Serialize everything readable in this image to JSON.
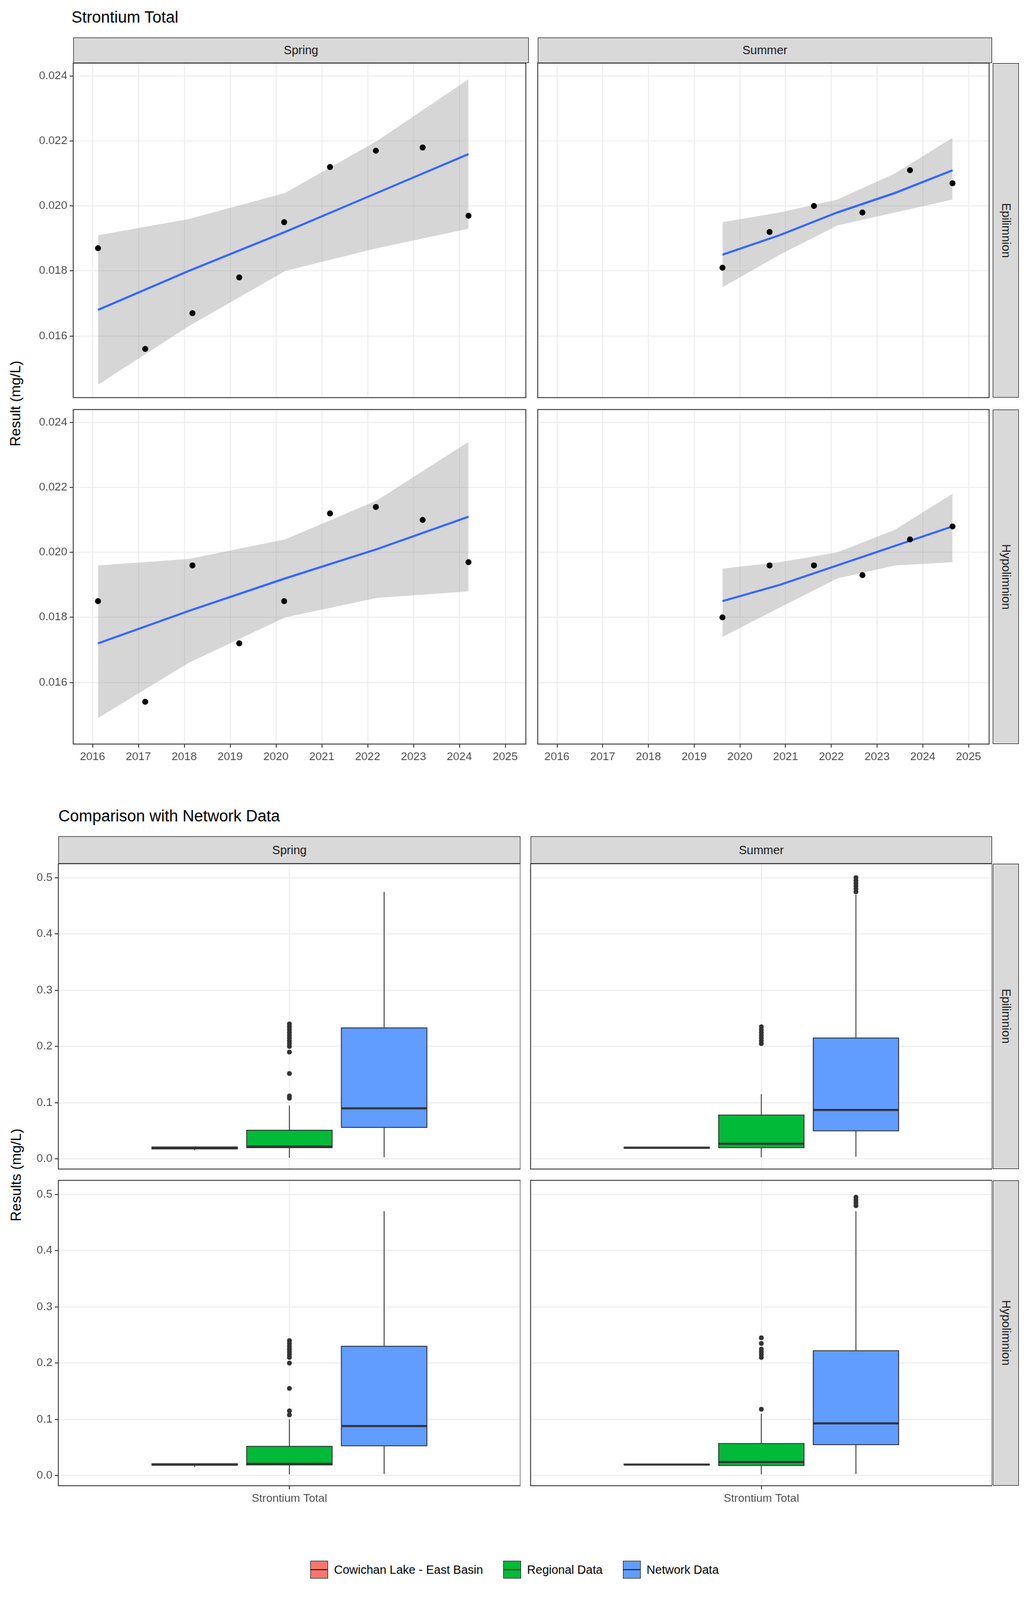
{
  "chart_data": [
    {
      "type": "scatter",
      "title": "Strontium Total",
      "y_label": "Result (mg/L)",
      "columns": [
        "Spring",
        "Summer"
      ],
      "rows": [
        "Epilimnion",
        "Hypolimnion"
      ],
      "xlim": [
        2015.58,
        2025.45
      ],
      "xticks": [
        2016,
        2017,
        2018,
        2019,
        2020,
        2021,
        2022,
        2023,
        2024,
        2025
      ],
      "ylim": [
        0.0141,
        0.0244
      ],
      "yticks": [
        0.016,
        0.018,
        {
          "value": 0.02,
          "label": "0.020"
        },
        0.022,
        0.024
      ],
      "grid": true,
      "color": "#000000",
      "panels": [
        {
          "column": "Spring",
          "row": "Epilimnion",
          "x": [
            2016.12,
            2017.15,
            2018.18,
            2019.2,
            2020.18,
            2021.18,
            2022.18,
            2023.2,
            2024.2
          ],
          "values": [
            0.0187,
            0.0156,
            0.0167,
            0.0178,
            0.0195,
            0.0212,
            0.0217,
            0.0218,
            0.0197
          ],
          "fit": {
            "color": "#3366FF",
            "x": [
              2016.12,
              2018.1,
              2020.2,
              2022.2,
              2024.2
            ],
            "values": [
              0.0168,
              0.018,
              0.0192,
              0.0204,
              0.0216
            ]
          },
          "band": {
            "color": "#999999",
            "x": [
              2016.12,
              2018.1,
              2020.2,
              2022.2,
              2024.2
            ],
            "lower": [
              0.0145,
              0.0163,
              0.018,
              0.0187,
              0.0193
            ],
            "upper": [
              0.0191,
              0.0196,
              0.0204,
              0.022,
              0.0239
            ]
          }
        },
        {
          "column": "Summer",
          "row": "Epilimnion",
          "x": [
            2019.62,
            2020.65,
            2021.62,
            2022.68,
            2023.72,
            2024.65
          ],
          "values": [
            0.0181,
            0.0192,
            0.02,
            0.0198,
            0.0211,
            0.0207
          ],
          "fit": {
            "color": "#3366FF",
            "x": [
              2019.62,
              2020.87,
              2022.13,
              2023.39,
              2024.65
            ],
            "values": [
              0.0185,
              0.0191,
              0.0198,
              0.0204,
              0.0211
            ]
          },
          "band": {
            "color": "#999999",
            "x": [
              2019.62,
              2020.87,
              2022.13,
              2023.39,
              2024.65
            ],
            "lower": [
              0.0175,
              0.0185,
              0.0194,
              0.0198,
              0.0202
            ],
            "upper": [
              0.0195,
              0.0198,
              0.0202,
              0.021,
              0.0221
            ]
          }
        },
        {
          "column": "Spring",
          "row": "Hypolimnion",
          "x": [
            2016.12,
            2017.15,
            2018.18,
            2019.2,
            2020.18,
            2021.18,
            2022.18,
            2023.2,
            2024.2
          ],
          "values": [
            0.0185,
            0.0154,
            0.0196,
            0.0172,
            0.0185,
            0.0212,
            0.0214,
            0.021,
            0.0197
          ],
          "fit": {
            "color": "#3366FF",
            "x": [
              2016.12,
              2018.1,
              2020.2,
              2022.2,
              2024.2
            ],
            "values": [
              0.0172,
              0.0182,
              0.0192,
              0.0201,
              0.0211
            ]
          },
          "band": {
            "color": "#999999",
            "x": [
              2016.12,
              2018.1,
              2020.2,
              2022.2,
              2024.2
            ],
            "lower": [
              0.0149,
              0.0166,
              0.018,
              0.0186,
              0.0188
            ],
            "upper": [
              0.0196,
              0.0198,
              0.0204,
              0.0216,
              0.0234
            ]
          }
        },
        {
          "column": "Summer",
          "row": "Hypolimnion",
          "x": [
            2019.62,
            2020.65,
            2021.62,
            2022.68,
            2023.72,
            2024.65
          ],
          "values": [
            0.018,
            0.0196,
            0.0196,
            0.0193,
            0.0204,
            0.0208
          ],
          "fit": {
            "color": "#3366FF",
            "x": [
              2019.62,
              2020.87,
              2022.13,
              2023.39,
              2024.65
            ],
            "values": [
              0.0185,
              0.019,
              0.0196,
              0.0202,
              0.0208
            ]
          },
          "band": {
            "color": "#999999",
            "x": [
              2019.62,
              2020.87,
              2022.13,
              2023.39,
              2024.65
            ],
            "lower": [
              0.0174,
              0.0183,
              0.0192,
              0.0196,
              0.0197
            ],
            "upper": [
              0.0195,
              0.0197,
              0.02,
              0.0207,
              0.0218
            ]
          }
        }
      ]
    },
    {
      "type": "boxplot",
      "title": "Comparison with Network Data",
      "y_label": "Results (mg/L)",
      "categories": [
        "Strontium Total"
      ],
      "columns": [
        "Spring",
        "Summer"
      ],
      "rows": [
        "Epilimnion",
        "Hypolimnion"
      ],
      "ylim": [
        -0.018,
        0.525
      ],
      "yticks": [
        {
          "value": 0,
          "label": "0.0"
        },
        0.1,
        0.2,
        0.3,
        0.4,
        0.5
      ],
      "grid": true,
      "legend": "bottom",
      "series": [
        {
          "name": "Cowichan Lake - East Basin",
          "color": "#F8766D"
        },
        {
          "name": "Regional Data",
          "color": "#00BA38"
        },
        {
          "name": "Network Data",
          "color": "#619CFF"
        }
      ],
      "panels": [
        {
          "column": "Spring",
          "row": "Epilimnion",
          "boxes": [
            {
              "min": 0.0156,
              "q1": 0.0178,
              "median": 0.0195,
              "q3": 0.0212,
              "max": 0.0218,
              "outliers": []
            },
            {
              "min": 0.002,
              "q1": 0.02,
              "median": 0.022,
              "q3": 0.051,
              "max": 0.095,
              "outliers": [
                0.108,
                0.112,
                0.152,
                0.19,
                0.2,
                0.205,
                0.21,
                0.215,
                0.22,
                0.225,
                0.23,
                0.235,
                0.24
              ]
            },
            {
              "min": 0.003,
              "q1": 0.056,
              "median": 0.09,
              "q3": 0.233,
              "max": 0.475,
              "outliers": []
            }
          ]
        },
        {
          "column": "Summer",
          "row": "Epilimnion",
          "boxes": [
            {
              "min": 0.0181,
              "q1": 0.0192,
              "median": 0.0199,
              "q3": 0.0207,
              "max": 0.0211,
              "outliers": []
            },
            {
              "min": 0.003,
              "q1": 0.02,
              "median": 0.027,
              "q3": 0.078,
              "max": 0.115,
              "outliers": [
                0.205,
                0.21,
                0.215,
                0.22,
                0.225,
                0.23,
                0.235
              ]
            },
            {
              "min": 0.004,
              "q1": 0.05,
              "median": 0.087,
              "q3": 0.215,
              "max": 0.47,
              "outliers": [
                0.475,
                0.48,
                0.485,
                0.49,
                0.495,
                0.5
              ]
            }
          ]
        },
        {
          "column": "Spring",
          "row": "Hypolimnion",
          "boxes": [
            {
              "min": 0.0154,
              "q1": 0.0185,
              "median": 0.0196,
              "q3": 0.021,
              "max": 0.0214,
              "outliers": []
            },
            {
              "min": 0.002,
              "q1": 0.019,
              "median": 0.021,
              "q3": 0.052,
              "max": 0.1,
              "outliers": [
                0.108,
                0.115,
                0.155,
                0.2,
                0.21,
                0.215,
                0.22,
                0.225,
                0.23,
                0.235,
                0.24
              ]
            },
            {
              "min": 0.003,
              "q1": 0.053,
              "median": 0.088,
              "q3": 0.23,
              "max": 0.47,
              "outliers": []
            }
          ]
        },
        {
          "column": "Summer",
          "row": "Hypolimnion",
          "boxes": [
            {
              "min": 0.018,
              "q1": 0.0193,
              "median": 0.0196,
              "q3": 0.0204,
              "max": 0.0208,
              "outliers": []
            },
            {
              "min": 0.002,
              "q1": 0.018,
              "median": 0.024,
              "q3": 0.057,
              "max": 0.11,
              "outliers": [
                0.118,
                0.21,
                0.215,
                0.22,
                0.225,
                0.235,
                0.245
              ]
            },
            {
              "min": 0.003,
              "q1": 0.055,
              "median": 0.093,
              "q3": 0.222,
              "max": 0.47,
              "outliers": [
                0.48,
                0.485,
                0.49,
                0.495
              ]
            }
          ]
        }
      ]
    }
  ]
}
